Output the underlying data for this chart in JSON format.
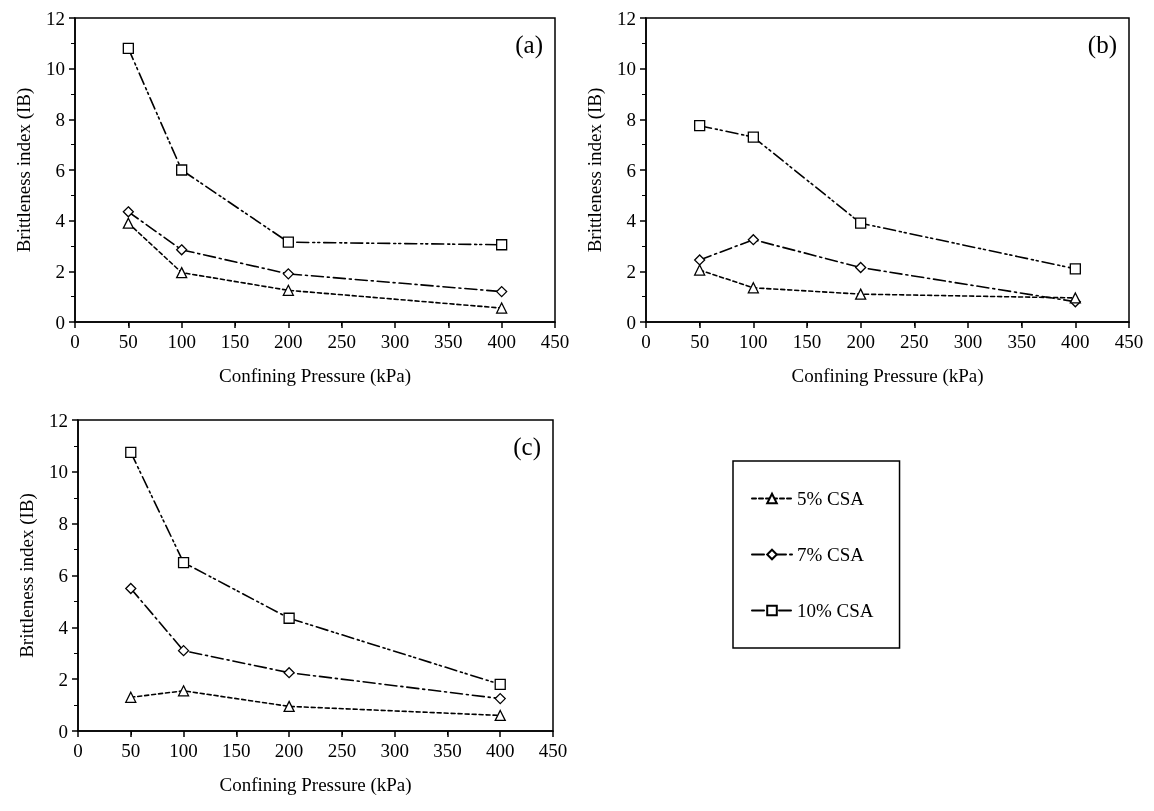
{
  "chart_data": [
    {
      "type": "line",
      "xlabel": "Confining Pressure (kPa)",
      "ylabel": "Brittleness index (IB)",
      "annotations": [
        "(a)"
      ],
      "x": [
        50,
        100,
        200,
        400
      ],
      "xlim": [
        0,
        450
      ],
      "xticks": [
        0,
        50,
        100,
        150,
        200,
        250,
        300,
        350,
        400,
        450
      ],
      "ylim": [
        0,
        12
      ],
      "yticks": [
        0,
        2,
        4,
        6,
        8,
        10,
        12
      ],
      "grid": false,
      "legend": false,
      "line_style": "dashed",
      "series": [
        {
          "color": "#000000",
          "marker": "triangle",
          "values": [
            3.9,
            1.95,
            1.25,
            0.55
          ]
        },
        {
          "color": "#000000",
          "marker": "diamond",
          "values": [
            4.35,
            2.85,
            1.9,
            1.2
          ]
        },
        {
          "color": "#000000",
          "marker": "square",
          "values": [
            10.8,
            6.0,
            3.15,
            3.05
          ]
        }
      ]
    },
    {
      "type": "line",
      "xlabel": "Confining Pressure (kPa)",
      "ylabel": "Brittleness index (IB)",
      "annotations": [
        "(b)"
      ],
      "x": [
        50,
        100,
        200,
        400
      ],
      "xlim": [
        0,
        450
      ],
      "xticks": [
        0,
        50,
        100,
        150,
        200,
        250,
        300,
        350,
        400,
        450
      ],
      "ylim": [
        0,
        12
      ],
      "yticks": [
        0,
        2,
        4,
        6,
        8,
        10,
        12
      ],
      "grid": false,
      "legend": false,
      "line_style": "dashed",
      "series": [
        {
          "color": "#000000",
          "marker": "triangle",
          "values": [
            2.05,
            1.35,
            1.1,
            0.95
          ]
        },
        {
          "color": "#000000",
          "marker": "diamond",
          "values": [
            2.45,
            3.25,
            2.15,
            0.8
          ]
        },
        {
          "color": "#000000",
          "marker": "square",
          "values": [
            7.75,
            7.3,
            3.9,
            2.1
          ]
        }
      ]
    },
    {
      "type": "line",
      "xlabel": "Confining Pressure (kPa)",
      "ylabel": "Brittleness index (IB)",
      "annotations": [
        "(c)"
      ],
      "x": [
        50,
        100,
        200,
        400
      ],
      "xlim": [
        0,
        450
      ],
      "xticks": [
        0,
        50,
        100,
        150,
        200,
        250,
        300,
        350,
        400,
        450
      ],
      "ylim": [
        0,
        12
      ],
      "yticks": [
        0,
        2,
        4,
        6,
        8,
        10,
        12
      ],
      "grid": false,
      "legend": "right",
      "line_style": "dashed",
      "series": [
        {
          "name": "5% CSA",
          "color": "#000000",
          "marker": "triangle",
          "values": [
            1.3,
            1.55,
            0.95,
            0.6
          ]
        },
        {
          "name": "7% CSA",
          "color": "#000000",
          "marker": "diamond",
          "values": [
            5.5,
            3.1,
            2.25,
            1.25
          ]
        },
        {
          "name": "10% CSA",
          "color": "#000000",
          "marker": "square",
          "values": [
            10.75,
            6.5,
            4.35,
            1.8
          ]
        }
      ]
    }
  ]
}
